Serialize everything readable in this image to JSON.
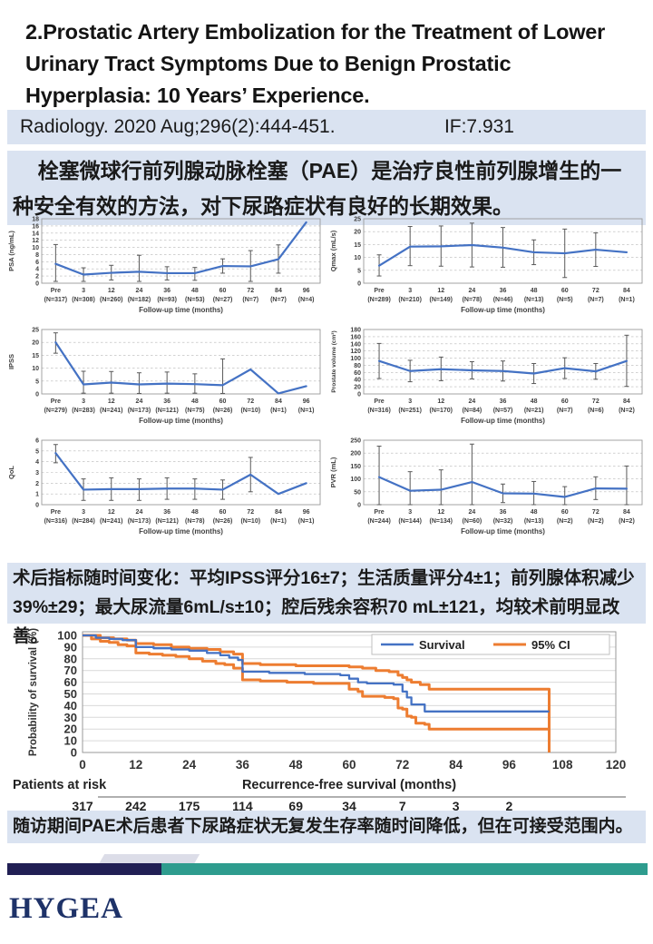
{
  "slide": {
    "title": "2.Prostatic Artery Embolization for the Treatment of Lower Urinary Tract Symptoms Due to Benign Prostatic Hyperplasia: 10 Years’ Experience.",
    "citation": "Radiology. 2020 Aug;296(2):444-451.",
    "impact_factor": "IF:7.931",
    "summary_top_prefix": "栓塞微球行前列腺动脉栓塞（",
    "summary_top_bold": "PAE",
    "summary_top_suffix": "）是治疗良性前列腺增生的一种安全有效的方法，对下尿路症状有良好的长期效果。",
    "summary_mid": "术后指标随时间变化：平均IPSS评分16±7；生活质量评分4±1；前列腺体积减少39%±29；最大尿流量6mL/s±10；腔后残余容积70 mL±121，均较术前明显改善。",
    "summary_bottom": "随访期间PAE术后患者下尿路症状无复发生存率随时间降低，但在可接受范围内。",
    "logo_text": "HYGEA"
  },
  "colors": {
    "box_bg": "#dae3f1",
    "line_blue": "#4472c4",
    "ci_orange": "#ed7d31",
    "err_gray": "#595959",
    "grid_gray": "#b7b7b7",
    "border_gray": "#9a9a9a",
    "tick_gray": "#404040",
    "bar_navy": "#211f54",
    "bar_teal": "#2e9c8e",
    "logo_navy": "#1e3268"
  },
  "chart_data": {
    "mini_charts": [
      {
        "id": "psa",
        "type": "line",
        "ylabel": "PSA (ng/mL)",
        "xlabel": "Follow-up time (months)",
        "ylim": [
          0,
          18
        ],
        "ytick_step": 2,
        "categories": [
          "Pre",
          "3",
          "12",
          "24",
          "36",
          "48",
          "60",
          "72",
          "84",
          "96"
        ],
        "n": [
          317,
          308,
          260,
          182,
          93,
          53,
          27,
          7,
          7,
          4
        ],
        "values": [
          5.4,
          2.4,
          2.9,
          3.2,
          2.8,
          2.8,
          4.8,
          4.7,
          6.7,
          17
        ],
        "err_lo": [
          0.5,
          0.5,
          0.9,
          0.5,
          0.9,
          0.8,
          2.8,
          0.5,
          2.8,
          null
        ],
        "err_hi": [
          10.8,
          4.3,
          5.0,
          7.8,
          4.6,
          4.4,
          6.8,
          9.1,
          10.7,
          null
        ]
      },
      {
        "id": "qmax",
        "type": "line",
        "ylabel": "Qmax (mL/s)",
        "xlabel": "Follow-up time (months)",
        "ylim": [
          0,
          25
        ],
        "ytick_step": 5,
        "categories": [
          "Pre",
          "3",
          "12",
          "24",
          "36",
          "48",
          "60",
          "72",
          "84"
        ],
        "n": [
          289,
          210,
          149,
          78,
          46,
          13,
          5,
          7,
          1
        ],
        "values": [
          6.8,
          14.2,
          14.3,
          14.8,
          13.8,
          12,
          11.6,
          13,
          12
        ],
        "err_lo": [
          2.8,
          6.8,
          6.6,
          6.3,
          6.2,
          7.2,
          2.2,
          6.5,
          null
        ],
        "err_hi": [
          11,
          22,
          22.2,
          23.3,
          21.6,
          16.8,
          21,
          19.5,
          null
        ]
      },
      {
        "id": "ipss",
        "type": "line",
        "ylabel": "IPSS",
        "xlabel": "Follow-up time (months)",
        "ylim": [
          0,
          25
        ],
        "ytick_step": 5,
        "categories": [
          "Pre",
          "3",
          "12",
          "24",
          "36",
          "48",
          "60",
          "72",
          "84",
          "96"
        ],
        "n": [
          279,
          283,
          241,
          173,
          121,
          75,
          26,
          10,
          1,
          1
        ],
        "values": [
          20,
          3.7,
          4.4,
          3.7,
          4,
          3.8,
          3.4,
          9.5,
          0.2,
          3
        ],
        "err_lo": [
          15.8,
          0.3,
          0.3,
          0.2,
          0.3,
          0.3,
          0.2,
          null,
          null,
          null
        ],
        "err_hi": [
          23.7,
          8.8,
          8.7,
          8.2,
          8.5,
          7.8,
          13.6,
          null,
          null,
          null
        ]
      },
      {
        "id": "prostate-volume",
        "type": "line",
        "ylabel": "Prostate volume (cm³)",
        "xlabel": "Follow-up time (months)",
        "ylim": [
          0,
          180
        ],
        "ytick_step": 20,
        "categories": [
          "Pre",
          "3",
          "12",
          "24",
          "36",
          "48",
          "60",
          "72",
          "84"
        ],
        "n": [
          316,
          251,
          170,
          84,
          57,
          21,
          7,
          6,
          2
        ],
        "values": [
          92,
          64,
          69,
          66,
          64,
          57,
          72,
          63,
          92
        ],
        "err_lo": [
          43,
          34,
          37,
          42,
          36,
          29,
          43,
          41,
          21
        ],
        "err_hi": [
          141,
          94,
          103,
          90,
          92,
          85,
          101,
          85,
          164
        ]
      },
      {
        "id": "qol",
        "type": "line",
        "ylabel": "QoL",
        "xlabel": "Follow-up time (months)",
        "ylim": [
          0,
          6
        ],
        "ytick_step": 1,
        "categories": [
          "Pre",
          "3",
          "12",
          "24",
          "36",
          "48",
          "60",
          "72",
          "84",
          "96"
        ],
        "n": [
          316,
          284,
          241,
          173,
          121,
          78,
          26,
          10,
          1,
          1
        ],
        "values": [
          4.8,
          1.4,
          1.45,
          1.45,
          1.5,
          1.5,
          1.4,
          2.8,
          1,
          2
        ],
        "err_lo": [
          3.9,
          0.4,
          0.4,
          0.4,
          0.5,
          0.5,
          0.5,
          1.2,
          null,
          null
        ],
        "err_hi": [
          5.6,
          2.4,
          2.5,
          2.4,
          2.5,
          2.4,
          2.3,
          4.4,
          null,
          null
        ]
      },
      {
        "id": "pvr",
        "type": "line",
        "ylabel": "PVR (mL)",
        "xlabel": "Follow-up time (months)",
        "ylim": [
          0,
          250
        ],
        "ytick_step": 50,
        "categories": [
          "Pre",
          "3",
          "12",
          "24",
          "36",
          "48",
          "60",
          "72",
          "84"
        ],
        "n": [
          244,
          144,
          134,
          60,
          32,
          13,
          2,
          2,
          2
        ],
        "values": [
          107,
          54,
          58,
          88,
          44,
          43,
          30,
          63,
          62
        ],
        "err_lo": [
          0,
          0,
          0,
          0,
          8,
          0,
          0,
          20,
          0
        ],
        "err_hi": [
          227,
          128,
          135,
          235,
          80,
          90,
          70,
          108,
          150
        ]
      }
    ],
    "km": {
      "type": "step-line",
      "ylabel": "Probability of survival (%)",
      "xlabel": "Recurrence-free survival (months)",
      "ylim": [
        0,
        100
      ],
      "ytick_step": 10,
      "xlim": [
        0,
        120
      ],
      "xtick_step": 12,
      "legend": [
        {
          "label": "Survival",
          "color_key": "line_blue"
        },
        {
          "label": "95% CI",
          "color_key": "ci_orange"
        }
      ],
      "series": [
        {
          "name": "95% CI upper",
          "color_key": "ci_orange",
          "width": 3,
          "points": [
            [
              0,
              100
            ],
            [
              4,
              100
            ],
            [
              4,
              98
            ],
            [
              7,
              98
            ],
            [
              7,
              97
            ],
            [
              10,
              97
            ],
            [
              10,
              96
            ],
            [
              12,
              96
            ],
            [
              12,
              93
            ],
            [
              16,
              93
            ],
            [
              16,
              92
            ],
            [
              20,
              92
            ],
            [
              20,
              90
            ],
            [
              24,
              90
            ],
            [
              24,
              89
            ],
            [
              28,
              89
            ],
            [
              28,
              88
            ],
            [
              31,
              88
            ],
            [
              31,
              86
            ],
            [
              34,
              86
            ],
            [
              34,
              84
            ],
            [
              36,
              84
            ],
            [
              36,
              76
            ],
            [
              40,
              76
            ],
            [
              40,
              75
            ],
            [
              48,
              75
            ],
            [
              48,
              74
            ],
            [
              60,
              74
            ],
            [
              60,
              73
            ],
            [
              63,
              73
            ],
            [
              63,
              72
            ],
            [
              66,
              72
            ],
            [
              66,
              70
            ],
            [
              69,
              70
            ],
            [
              69,
              69
            ],
            [
              71,
              69
            ],
            [
              71,
              66
            ],
            [
              72,
              66
            ],
            [
              72,
              64
            ],
            [
              73,
              64
            ],
            [
              73,
              62
            ],
            [
              74,
              62
            ],
            [
              74,
              60
            ],
            [
              76,
              60
            ],
            [
              76,
              58
            ],
            [
              78,
              58
            ],
            [
              78,
              54
            ],
            [
              105,
              54
            ],
            [
              105,
              0
            ]
          ]
        },
        {
          "name": "95% CI lower",
          "color_key": "ci_orange",
          "width": 3,
          "points": [
            [
              0,
              100
            ],
            [
              2,
              100
            ],
            [
              2,
              97
            ],
            [
              4,
              97
            ],
            [
              4,
              95
            ],
            [
              6,
              95
            ],
            [
              6,
              94
            ],
            [
              8,
              94
            ],
            [
              8,
              92
            ],
            [
              10,
              92
            ],
            [
              10,
              91
            ],
            [
              12,
              91
            ],
            [
              12,
              85
            ],
            [
              15,
              85
            ],
            [
              15,
              84
            ],
            [
              18,
              84
            ],
            [
              18,
              83
            ],
            [
              21,
              83
            ],
            [
              21,
              82
            ],
            [
              24,
              82
            ],
            [
              24,
              80
            ],
            [
              27,
              80
            ],
            [
              27,
              78
            ],
            [
              30,
              78
            ],
            [
              30,
              76
            ],
            [
              32,
              76
            ],
            [
              32,
              75
            ],
            [
              34,
              75
            ],
            [
              34,
              72
            ],
            [
              36,
              72
            ],
            [
              36,
              62
            ],
            [
              40,
              62
            ],
            [
              40,
              61
            ],
            [
              46,
              61
            ],
            [
              46,
              60
            ],
            [
              52,
              60
            ],
            [
              52,
              59
            ],
            [
              60,
              59
            ],
            [
              60,
              54
            ],
            [
              62,
              54
            ],
            [
              62,
              52
            ],
            [
              63,
              52
            ],
            [
              63,
              48
            ],
            [
              68,
              48
            ],
            [
              68,
              47
            ],
            [
              70,
              47
            ],
            [
              70,
              46
            ],
            [
              71,
              46
            ],
            [
              71,
              38
            ],
            [
              72,
              38
            ],
            [
              72,
              37
            ],
            [
              73,
              37
            ],
            [
              73,
              31
            ],
            [
              74,
              31
            ],
            [
              74,
              30
            ],
            [
              75,
              30
            ],
            [
              75,
              25
            ],
            [
              77,
              25
            ],
            [
              77,
              24
            ],
            [
              78,
              24
            ],
            [
              78,
              20
            ],
            [
              105,
              20
            ],
            [
              105,
              0
            ]
          ]
        },
        {
          "name": "Survival",
          "color_key": "line_blue",
          "width": 2.3,
          "points": [
            [
              0,
              100
            ],
            [
              3,
              100
            ],
            [
              3,
              98
            ],
            [
              6,
              98
            ],
            [
              6,
              97
            ],
            [
              9,
              97
            ],
            [
              9,
              96
            ],
            [
              12,
              96
            ],
            [
              12,
              90
            ],
            [
              16,
              90
            ],
            [
              16,
              89
            ],
            [
              20,
              89
            ],
            [
              20,
              88
            ],
            [
              24,
              88
            ],
            [
              24,
              87
            ],
            [
              28,
              87
            ],
            [
              28,
              85
            ],
            [
              31,
              85
            ],
            [
              31,
              83
            ],
            [
              33,
              83
            ],
            [
              33,
              81
            ],
            [
              35,
              81
            ],
            [
              35,
              79
            ],
            [
              36,
              79
            ],
            [
              36,
              69
            ],
            [
              42,
              69
            ],
            [
              42,
              68
            ],
            [
              50,
              68
            ],
            [
              50,
              67
            ],
            [
              58,
              67
            ],
            [
              58,
              66
            ],
            [
              60,
              66
            ],
            [
              60,
              63
            ],
            [
              62,
              63
            ],
            [
              62,
              60
            ],
            [
              64,
              60
            ],
            [
              64,
              59
            ],
            [
              70,
              59
            ],
            [
              70,
              58
            ],
            [
              72,
              58
            ],
            [
              72,
              52
            ],
            [
              73,
              52
            ],
            [
              73,
              47
            ],
            [
              74,
              47
            ],
            [
              74,
              41
            ],
            [
              77,
              41
            ],
            [
              77,
              35
            ],
            [
              105,
              35
            ]
          ]
        }
      ],
      "patients_at_risk": {
        "label": "Patients at risk",
        "months": [
          0,
          12,
          24,
          36,
          48,
          60,
          72,
          84,
          96
        ],
        "values": [
          317,
          242,
          175,
          114,
          69,
          34,
          7,
          3,
          2
        ]
      }
    }
  }
}
